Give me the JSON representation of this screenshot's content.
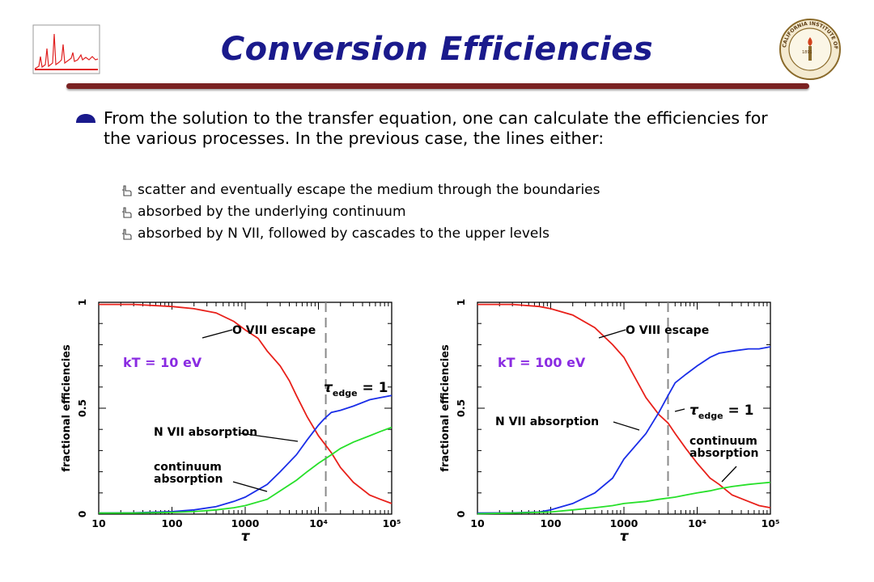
{
  "slide": {
    "title": "Conversion Efficiencies",
    "bullet": "From the solution to the transfer equation, one can calculate the efficiencies for the various processes.  In the previous case, the lines either:",
    "subbullets": [
      "scatter and eventually escape the medium through the boundaries",
      "absorbed by the underlying continuum",
      "absorbed by N VII, followed by cascades to the upper levels"
    ],
    "logo_text": "CALIFORNIA INSTITUTE OF TECHNOLOGY",
    "logo_year": "1891",
    "colors": {
      "title": "#1a1a8c",
      "rule": "#7a2222",
      "kT_label": "#8a2be2"
    }
  },
  "chart_data": [
    {
      "type": "line",
      "xlabel": "τ",
      "ylabel": "fractional efficiencies",
      "xscale": "log",
      "xlim": [
        10,
        100000
      ],
      "ylim": [
        0,
        1
      ],
      "xticks": [
        "10",
        "100",
        "1000",
        "10⁴",
        "10⁵"
      ],
      "xtick_values": [
        10,
        100,
        1000,
        10000,
        100000
      ],
      "yticks": [
        "0",
        "0.5",
        "1"
      ],
      "ytick_values": [
        0,
        0.5,
        1
      ],
      "annotation_kT": "kT = 10 eV",
      "vline": {
        "x": 12600,
        "label": "τedge = 1"
      },
      "series": [
        {
          "name": "O VIII escape",
          "color": "#e8201a",
          "x": [
            10,
            30,
            100,
            200,
            400,
            700,
            1000,
            1500,
            2000,
            3000,
            4000,
            5000,
            7000,
            10000,
            15000,
            20000,
            30000,
            50000,
            70000,
            100000
          ],
          "y": [
            0.99,
            0.99,
            0.98,
            0.97,
            0.95,
            0.91,
            0.87,
            0.83,
            0.77,
            0.7,
            0.63,
            0.56,
            0.46,
            0.37,
            0.29,
            0.22,
            0.15,
            0.09,
            0.07,
            0.05
          ]
        },
        {
          "name": "N VII absorption",
          "color": "#1a2ee8",
          "x": [
            10,
            30,
            100,
            200,
            400,
            700,
            1000,
            2000,
            3000,
            5000,
            7000,
            10000,
            12000,
            15000,
            20000,
            30000,
            50000,
            70000,
            100000
          ],
          "y": [
            0.005,
            0.006,
            0.012,
            0.02,
            0.035,
            0.06,
            0.08,
            0.14,
            0.2,
            0.28,
            0.35,
            0.42,
            0.45,
            0.48,
            0.49,
            0.51,
            0.54,
            0.55,
            0.56
          ]
        },
        {
          "name": "continuum absorption",
          "color": "#27e02a",
          "x": [
            10,
            30,
            100,
            200,
            400,
            700,
            1000,
            2000,
            3000,
            5000,
            7000,
            10000,
            15000,
            20000,
            30000,
            50000,
            70000,
            100000
          ],
          "y": [
            0.005,
            0.005,
            0.008,
            0.012,
            0.02,
            0.03,
            0.04,
            0.07,
            0.11,
            0.16,
            0.2,
            0.24,
            0.28,
            0.31,
            0.34,
            0.37,
            0.39,
            0.41
          ]
        }
      ],
      "series_labels": [
        "O VIII escape",
        "N VII absorption",
        "continuum",
        "absorption"
      ]
    },
    {
      "type": "line",
      "xlabel": "τ",
      "ylabel": "fractional efficiencies",
      "xscale": "log",
      "xlim": [
        10,
        100000
      ],
      "ylim": [
        0,
        1
      ],
      "xticks": [
        "10",
        "100",
        "1000",
        "10⁴",
        "10⁵"
      ],
      "xtick_values": [
        10,
        100,
        1000,
        10000,
        100000
      ],
      "yticks": [
        "0",
        "0.5",
        "1"
      ],
      "ytick_values": [
        0,
        0.5,
        1
      ],
      "annotation_kT": "kT = 100 eV",
      "vline": {
        "x": 4000,
        "label": "τedge = 1"
      },
      "series": [
        {
          "name": "O VIII escape",
          "color": "#e8201a",
          "x": [
            10,
            30,
            70,
            100,
            200,
            400,
            700,
            1000,
            2000,
            3000,
            4000,
            5000,
            7000,
            10000,
            15000,
            20000,
            30000,
            50000,
            70000,
            100000
          ],
          "y": [
            0.99,
            0.99,
            0.98,
            0.97,
            0.94,
            0.88,
            0.8,
            0.74,
            0.55,
            0.47,
            0.43,
            0.38,
            0.31,
            0.24,
            0.17,
            0.14,
            0.09,
            0.06,
            0.04,
            0.03
          ]
        },
        {
          "name": "N VII absorption",
          "color": "#1a2ee8",
          "x": [
            10,
            30,
            70,
            100,
            200,
            400,
            700,
            1000,
            2000,
            3000,
            4000,
            5000,
            7000,
            10000,
            15000,
            20000,
            30000,
            50000,
            70000,
            100000
          ],
          "y": [
            0.005,
            0.006,
            0.01,
            0.02,
            0.05,
            0.1,
            0.17,
            0.26,
            0.38,
            0.48,
            0.56,
            0.62,
            0.66,
            0.7,
            0.74,
            0.76,
            0.77,
            0.78,
            0.78,
            0.79
          ]
        },
        {
          "name": "continuum absorption",
          "color": "#27e02a",
          "x": [
            10,
            30,
            100,
            200,
            400,
            700,
            1000,
            2000,
            3000,
            5000,
            7000,
            10000,
            15000,
            20000,
            30000,
            50000,
            70000,
            100000
          ],
          "y": [
            0.002,
            0.005,
            0.01,
            0.02,
            0.03,
            0.04,
            0.05,
            0.06,
            0.07,
            0.08,
            0.09,
            0.1,
            0.11,
            0.12,
            0.13,
            0.14,
            0.145,
            0.15
          ]
        }
      ],
      "series_labels": [
        "O VIII escape",
        "N VII absorption",
        "continuum",
        "absorption"
      ]
    }
  ]
}
